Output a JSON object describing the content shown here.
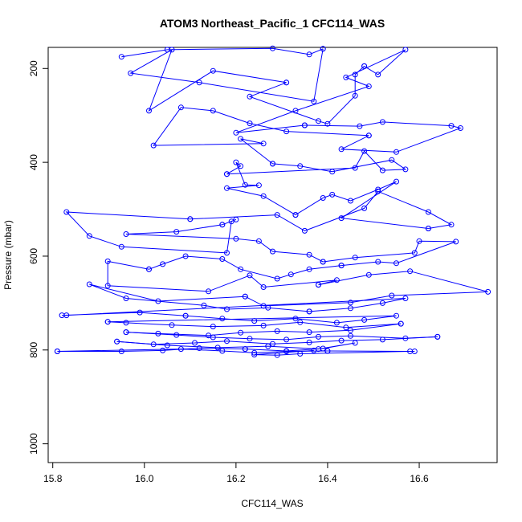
{
  "chart_data": {
    "type": "line",
    "title": "ATOM3 Northeast_Pacific_1 CFC114_WAS",
    "xlabel": "CFC114_WAS",
    "ylabel": "Pressure (mbar)",
    "xlim": [
      15.79,
      16.77
    ],
    "ylim": [
      1040,
      155
    ],
    "y_reversed": true,
    "xticks": [
      15.8,
      16.0,
      16.2,
      16.4,
      16.6
    ],
    "xtick_labels": [
      "15.8",
      "16.0",
      "16.2",
      "16.4",
      "16.6"
    ],
    "yticks": [
      200,
      400,
      600,
      800,
      1000
    ],
    "ytick_labels": [
      "200",
      "400",
      "600",
      "800",
      "1000"
    ],
    "grid": false,
    "line_color": "#0000ff",
    "series": [
      {
        "x": [
          15.95,
          16.05,
          16.28,
          16.36,
          16.39
        ],
        "y": [
          175,
          160,
          157,
          170,
          158
        ]
      },
      {
        "x": [
          16.39,
          16.37,
          16.12,
          15.97,
          16.06,
          16.01,
          16.15,
          16.31
        ],
        "y": [
          158,
          270,
          230,
          210,
          160,
          290,
          205,
          230
        ]
      },
      {
        "x": [
          16.31,
          16.23,
          16.38,
          16.4,
          16.46,
          16.46,
          16.48
        ],
        "y": [
          230,
          260,
          312,
          318,
          258,
          213,
          195
        ]
      },
      {
        "x": [
          16.48,
          16.51,
          16.57,
          16.44,
          16.49,
          16.33,
          16.2,
          16.35
        ],
        "y": [
          195,
          213,
          160,
          219,
          238,
          290,
          337,
          321
        ]
      },
      {
        "x": [
          16.35,
          16.47,
          16.52,
          16.67,
          16.69,
          16.55,
          16.43,
          16.49
        ],
        "y": [
          321,
          323,
          314,
          322,
          327,
          378,
          372,
          343
        ]
      },
      {
        "x": [
          16.49,
          16.31,
          16.23,
          16.15,
          16.08,
          16.02,
          16.26,
          16.21,
          16.28
        ],
        "y": [
          343,
          334,
          317,
          290,
          283,
          364,
          360,
          350,
          403
        ]
      },
      {
        "x": [
          16.28,
          16.34,
          16.41,
          16.54,
          16.57,
          16.52,
          16.48,
          16.46,
          16.18
        ],
        "y": [
          403,
          408,
          420,
          395,
          415,
          417,
          376,
          412,
          425
        ]
      },
      {
        "x": [
          16.18,
          16.21,
          16.2,
          16.22,
          16.25,
          16.18,
          16.26,
          16.33
        ],
        "y": [
          425,
          408,
          400,
          448,
          449,
          455,
          472,
          512
        ]
      },
      {
        "x": [
          16.33,
          16.39,
          16.41,
          16.45,
          16.51,
          16.55,
          16.43,
          16.62
        ],
        "y": [
          512,
          476,
          469,
          482,
          458,
          441,
          519,
          541
        ]
      },
      {
        "x": [
          16.62,
          16.67,
          16.62,
          16.51,
          16.48,
          16.35,
          16.29,
          16.1
        ],
        "y": [
          541,
          533,
          506,
          462,
          498,
          546,
          512,
          521
        ]
      },
      {
        "x": [
          16.1,
          15.83,
          15.88,
          15.95,
          16.18,
          16.19,
          16.2,
          16.17
        ],
        "y": [
          521,
          506,
          557,
          580,
          593,
          526,
          522,
          533
        ]
      },
      {
        "x": [
          16.17,
          16.07,
          15.96,
          16.2,
          16.25,
          16.28,
          16.36,
          16.39
        ],
        "y": [
          533,
          548,
          553,
          563,
          568,
          590,
          597,
          612
        ]
      },
      {
        "x": [
          16.39,
          16.46,
          16.59,
          16.6,
          16.68,
          16.55,
          16.51,
          16.43
        ],
        "y": [
          612,
          603,
          593,
          568,
          569,
          615,
          612,
          620
        ]
      },
      {
        "x": [
          16.43,
          16.36,
          16.32,
          16.29,
          16.21,
          16.17,
          16.09,
          16.04,
          16.01
        ],
        "y": [
          620,
          628,
          639,
          648,
          628,
          606,
          600,
          617,
          628
        ]
      },
      {
        "x": [
          16.01,
          15.92,
          15.92,
          16.14,
          16.23,
          16.26,
          16.42,
          16.38
        ],
        "y": [
          628,
          611,
          663,
          675,
          641,
          666,
          651,
          661
        ]
      },
      {
        "x": [
          16.38,
          16.49,
          16.58,
          16.75,
          16.54,
          16.45,
          16.26,
          16.22
        ],
        "y": [
          661,
          640,
          632,
          676,
          684,
          699,
          706,
          686
        ]
      },
      {
        "x": [
          16.22,
          16.03,
          15.88,
          15.96,
          16.13,
          16.18,
          16.27,
          16.36
        ],
        "y": [
          686,
          696,
          660,
          690,
          705,
          713,
          710,
          718
        ]
      },
      {
        "x": [
          16.36,
          16.45,
          16.52,
          16.57,
          15.83,
          15.82,
          15.99,
          16.09
        ],
        "y": [
          718,
          711,
          700,
          690,
          726,
          726,
          720,
          727
        ]
      },
      {
        "x": [
          16.09,
          16.17,
          16.24,
          16.33,
          16.42,
          16.48,
          16.55,
          15.92
        ],
        "y": [
          727,
          733,
          738,
          733,
          742,
          736,
          727,
          740
        ]
      },
      {
        "x": [
          15.92,
          15.96,
          16.06,
          16.15,
          16.26,
          16.34,
          16.44,
          16.56
        ],
        "y": [
          740,
          742,
          747,
          750,
          748,
          741,
          752,
          744
        ]
      },
      {
        "x": [
          16.56,
          16.45,
          16.36,
          16.29,
          16.21,
          16.14,
          16.03,
          15.96
        ],
        "y": [
          744,
          758,
          762,
          760,
          763,
          769,
          765,
          762
        ]
      },
      {
        "x": [
          15.96,
          16.07,
          16.15,
          16.23,
          16.31,
          16.38,
          16.45,
          16.57,
          16.64
        ],
        "y": [
          762,
          768,
          773,
          776,
          778,
          772,
          770,
          775,
          772
        ]
      },
      {
        "x": [
          16.64,
          16.52,
          16.43,
          16.36,
          16.28,
          16.18,
          16.11,
          16.02,
          15.94
        ],
        "y": [
          772,
          778,
          780,
          784,
          787,
          781,
          785,
          788,
          782
        ]
      },
      {
        "x": [
          15.94,
          16.05,
          16.16,
          16.27,
          16.38,
          16.46,
          16.39,
          16.31,
          16.22
        ],
        "y": [
          782,
          790,
          795,
          792,
          798,
          785,
          797,
          802,
          798
        ]
      },
      {
        "x": [
          16.22,
          16.12,
          16.04,
          15.95,
          15.81,
          15.81,
          16.08,
          16.17,
          16.24,
          16.31,
          16.4
        ],
        "y": [
          798,
          796,
          801,
          803,
          803,
          803,
          798,
          802,
          806,
          803,
          802
        ]
      },
      {
        "x": [
          16.4,
          16.59,
          16.58,
          16.34,
          16.29,
          16.24,
          16.37
        ],
        "y": [
          802,
          803,
          803,
          808,
          811,
          810,
          801
        ]
      }
    ]
  }
}
